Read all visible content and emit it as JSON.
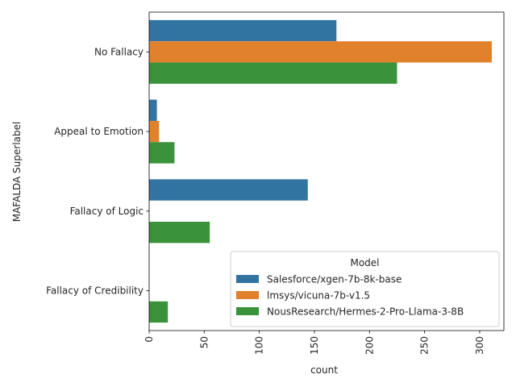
{
  "chart_data": {
    "type": "bar",
    "orientation": "horizontal",
    "categories": [
      "No Fallacy",
      "Appeal to Emotion",
      "Fallacy of Logic",
      "Fallacy of Credibility"
    ],
    "series": [
      {
        "name": "Salesforce/xgen-7b-8k-base",
        "values": [
          170,
          7,
          144,
          0
        ],
        "color": "#3274a1"
      },
      {
        "name": "lmsys/vicuna-7b-v1.5",
        "values": [
          311,
          9,
          0,
          0
        ],
        "color": "#e1812c"
      },
      {
        "name": "NousResearch/Hermes-2-Pro-Llama-3-8B",
        "values": [
          225,
          23,
          55,
          17
        ],
        "color": "#3a923a"
      }
    ],
    "xlabel": "count",
    "ylabel": "MAFALDA Superlabel",
    "xlim": [
      0,
      322
    ],
    "xticks": [
      0,
      50,
      100,
      150,
      200,
      250,
      300
    ],
    "xtick_rotation": 90,
    "legend": {
      "title": "Model",
      "position": "lower right"
    },
    "grid": false
  }
}
